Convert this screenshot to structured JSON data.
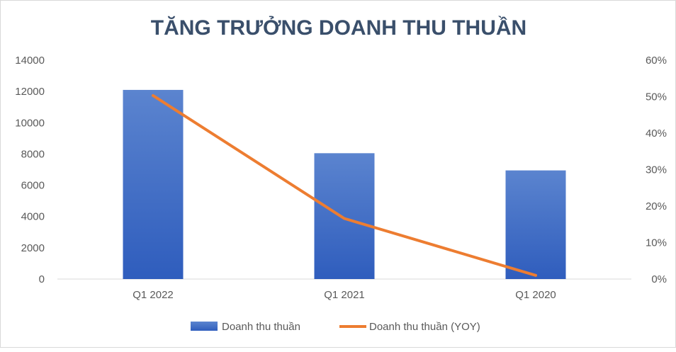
{
  "chart_data": {
    "type": "bar",
    "title": "TĂNG TRƯỞNG DOANH THU THUẦN",
    "categories": [
      "Q1 2022",
      "Q1 2021",
      "Q1 2020"
    ],
    "series": [
      {
        "name": "Doanh thu thuần",
        "type": "bar",
        "axis": "left",
        "values": [
          12100,
          8050,
          6950
        ],
        "color": "#4472c4"
      },
      {
        "name": "Doanh thu thuần (YOY)",
        "type": "line",
        "axis": "right",
        "values": [
          0.503,
          0.166,
          0.01
        ],
        "color": "#ed7d31"
      }
    ],
    "y_left": {
      "ylim": [
        0,
        14000
      ],
      "ticks": [
        "0",
        "2000",
        "4000",
        "6000",
        "8000",
        "10000",
        "12000",
        "14000"
      ]
    },
    "y_right": {
      "ylim": [
        0,
        0.6
      ],
      "ticks": [
        "0%",
        "10%",
        "20%",
        "30%",
        "40%",
        "50%",
        "60%"
      ]
    },
    "grid": false,
    "legend_position": "bottom"
  }
}
